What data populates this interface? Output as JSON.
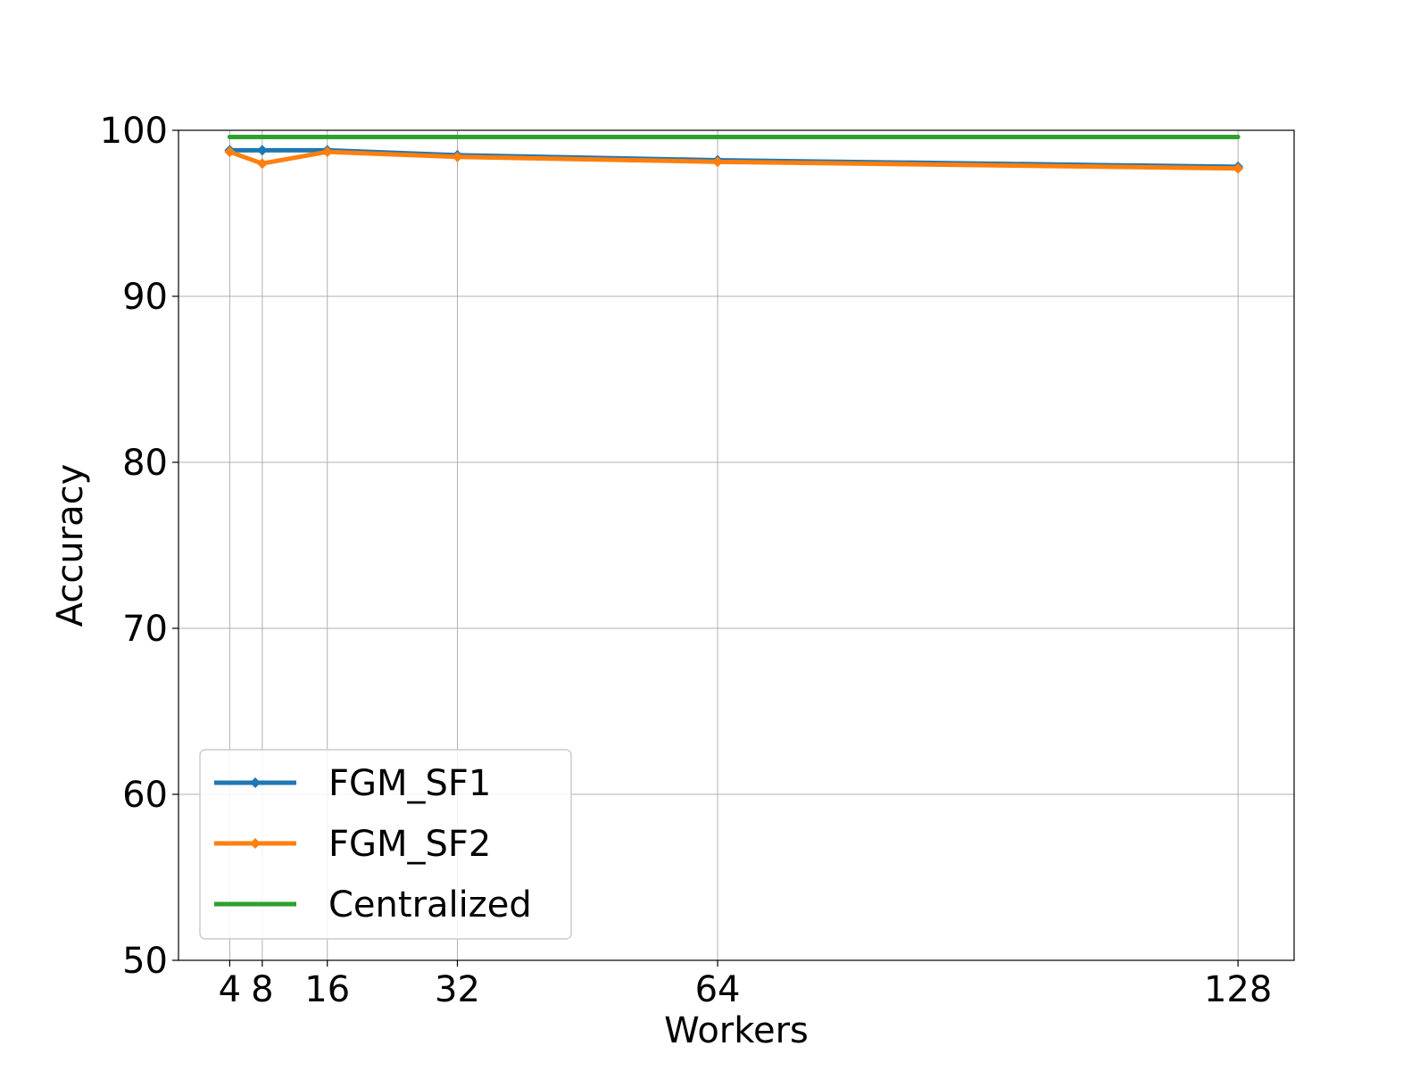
{
  "chart_data": {
    "type": "line",
    "xlabel": "Workers",
    "ylabel": "Accuracy",
    "x": [
      4,
      8,
      16,
      32,
      64,
      128
    ],
    "x_ticks": [
      "4",
      "8",
      "16",
      "32",
      "64",
      "128"
    ],
    "y_ticks": [
      "50",
      "60",
      "70",
      "80",
      "90",
      "100"
    ],
    "xlim": [
      -2.3,
      134.9
    ],
    "ylim": [
      50,
      100
    ],
    "grid": true,
    "legend_position": "lower-left",
    "series": [
      {
        "name": "FGM_SF1",
        "color": "#1f77b4",
        "marker": "diamond",
        "values": [
          98.8,
          98.8,
          98.8,
          98.5,
          98.2,
          97.8
        ]
      },
      {
        "name": "FGM_SF2",
        "color": "#ff7f0e",
        "marker": "diamond",
        "values": [
          98.7,
          98.0,
          98.7,
          98.4,
          98.1,
          97.7
        ]
      },
      {
        "name": "Centralized",
        "color": "#2ca02c",
        "marker": "none",
        "values": [
          99.6,
          99.6,
          99.6,
          99.6,
          99.6,
          99.6
        ]
      }
    ]
  }
}
